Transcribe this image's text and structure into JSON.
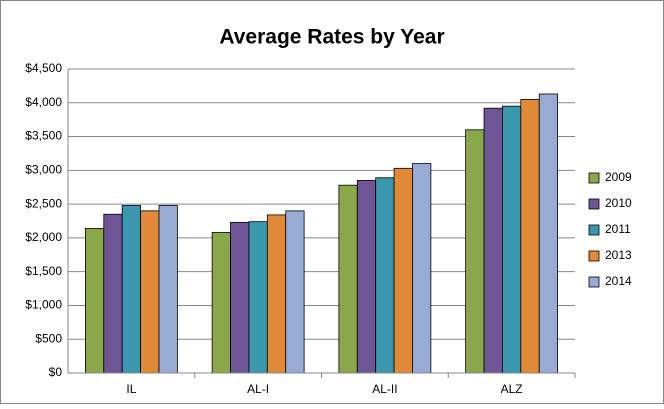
{
  "chart_data": {
    "type": "bar",
    "title": "Average Rates by Year",
    "categories": [
      "IL",
      "AL-I",
      "AL-II",
      "ALZ"
    ],
    "series": [
      {
        "name": "2009",
        "color": "#8aa84a",
        "values": [
          2140,
          2080,
          2780,
          3600
        ]
      },
      {
        "name": "2010",
        "color": "#6e5595",
        "values": [
          2350,
          2230,
          2850,
          3920
        ]
      },
      {
        "name": "2011",
        "color": "#3a97ad",
        "values": [
          2480,
          2240,
          2890,
          3950
        ]
      },
      {
        "name": "2013",
        "color": "#e08a38",
        "values": [
          2400,
          2340,
          3030,
          4050
        ]
      },
      {
        "name": "2014",
        "color": "#97abd4",
        "values": [
          2480,
          2400,
          3100,
          4130
        ]
      }
    ],
    "ylim": [
      0,
      4500
    ],
    "yticks": [
      {
        "value": 0,
        "label": "$0"
      },
      {
        "value": 500,
        "label": "$500"
      },
      {
        "value": 1000,
        "label": "$1,000"
      },
      {
        "value": 1500,
        "label": "$1,500"
      },
      {
        "value": 2000,
        "label": "$2,000"
      },
      {
        "value": 2500,
        "label": "$2,500"
      },
      {
        "value": 3000,
        "label": "$3,000"
      },
      {
        "value": 3500,
        "label": "$3,500"
      },
      {
        "value": 4000,
        "label": "$4,000"
      },
      {
        "value": 4500,
        "label": "$4,500"
      }
    ],
    "grid": true,
    "legend": "right"
  }
}
